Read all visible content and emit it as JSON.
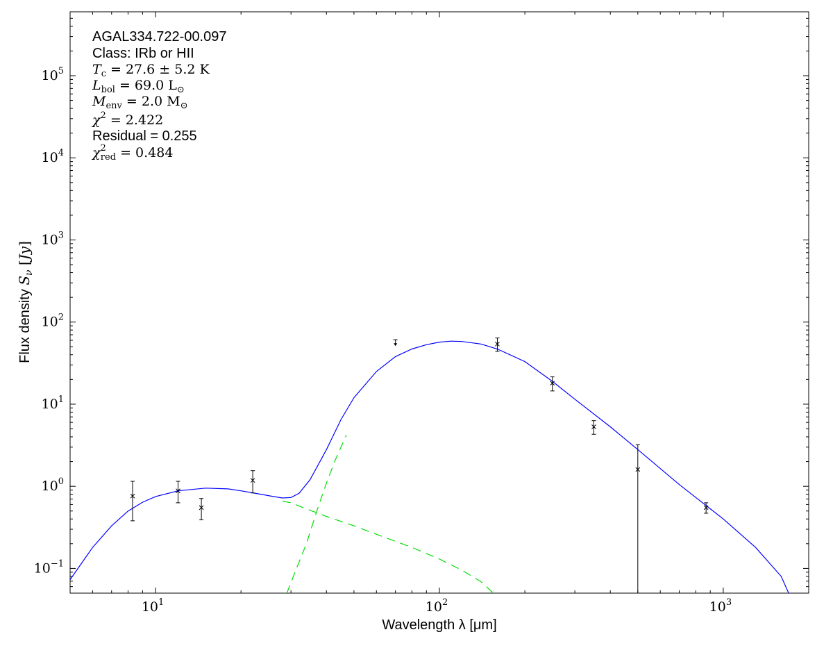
{
  "chart_data": {
    "type": "scatter",
    "xlabel": "Wavelength λ [μm]",
    "ylabel": "Flux density S_ν [Jy]",
    "xscale": "log",
    "yscale": "log",
    "xlim": [
      5,
      2000
    ],
    "ylim": [
      0.05,
      600000
    ],
    "x_ticks": [
      {
        "value": 10,
        "base": "10",
        "exp": "1"
      },
      {
        "value": 100,
        "base": "10",
        "exp": "2"
      },
      {
        "value": 1000,
        "base": "10",
        "exp": "3"
      }
    ],
    "y_ticks": [
      {
        "value": 0.1,
        "base": "10",
        "exp": "−1"
      },
      {
        "value": 1,
        "base": "10",
        "exp": "0"
      },
      {
        "value": 10,
        "base": "10",
        "exp": "1"
      },
      {
        "value": 100,
        "base": "10",
        "exp": "2"
      },
      {
        "value": 1000,
        "base": "10",
        "exp": "3"
      },
      {
        "value": 10000,
        "base": "10",
        "exp": "4"
      },
      {
        "value": 100000,
        "base": "10",
        "exp": "5"
      }
    ],
    "grid": false,
    "annotations": {
      "source": "AGAL334.722-00.097",
      "class_text": "Class: IRb or HII",
      "tc": {
        "sym": "T",
        "sub": "c",
        "val": " = 27.6 ± 5.2 K"
      },
      "lbol": {
        "sym": "L",
        "sub": "bol",
        "val": " = 69.0 L",
        "sub2": "⊙"
      },
      "menv": {
        "sym": "M",
        "sub": "env",
        "val": " = 2.0 M",
        "sub2": "⊙"
      },
      "chi2": {
        "sym": "χ",
        "sup": "2",
        "val": " = 2.422"
      },
      "residual": "Residual = 0.255",
      "chi2red": {
        "sym": "χ",
        "sup": "2",
        "sub": "red",
        "val": " = 0.484"
      }
    },
    "data_points": [
      {
        "x": 8.3,
        "y": 0.76,
        "ylo": 0.38,
        "yhi": 1.15
      },
      {
        "x": 12,
        "y": 0.88,
        "ylo": 0.63,
        "yhi": 1.15
      },
      {
        "x": 14.5,
        "y": 0.55,
        "ylo": 0.39,
        "yhi": 0.71
      },
      {
        "x": 22,
        "y": 1.18,
        "ylo": 0.83,
        "yhi": 1.55
      },
      {
        "x": 160,
        "y": 54,
        "ylo": 44,
        "yhi": 64
      },
      {
        "x": 250,
        "y": 18,
        "ylo": 14.5,
        "yhi": 21.5
      },
      {
        "x": 350,
        "y": 5.3,
        "ylo": 4.3,
        "yhi": 6.3
      },
      {
        "x": 500,
        "y": 1.6,
        "ylo": 0.0001,
        "yhi": 3.2
      },
      {
        "x": 870,
        "y": 0.55,
        "ylo": 0.47,
        "yhi": 0.63
      }
    ],
    "upper_limits": [
      {
        "x": 70,
        "y": 61,
        "arrow_to": 52
      }
    ],
    "model_curves": {
      "total_color": "#0000ff",
      "component_color": "#00dd00",
      "total": [
        [
          5,
          0.073
        ],
        [
          6,
          0.18
        ],
        [
          7,
          0.33
        ],
        [
          8,
          0.5
        ],
        [
          9,
          0.64
        ],
        [
          10,
          0.75
        ],
        [
          12,
          0.88
        ],
        [
          15,
          0.95
        ],
        [
          18,
          0.93
        ],
        [
          20,
          0.88
        ],
        [
          23,
          0.81
        ],
        [
          26,
          0.75
        ],
        [
          28,
          0.72
        ],
        [
          30,
          0.73
        ],
        [
          32,
          0.82
        ],
        [
          35,
          1.2
        ],
        [
          40,
          2.8
        ],
        [
          45,
          6.5
        ],
        [
          50,
          12
        ],
        [
          60,
          25
        ],
        [
          70,
          38
        ],
        [
          80,
          47
        ],
        [
          90,
          53
        ],
        [
          100,
          57
        ],
        [
          110,
          58.5
        ],
        [
          120,
          58
        ],
        [
          140,
          54
        ],
        [
          160,
          47
        ],
        [
          200,
          33
        ],
        [
          250,
          19
        ],
        [
          300,
          11.5
        ],
        [
          400,
          5.3
        ],
        [
          500,
          2.8
        ],
        [
          700,
          1.05
        ],
        [
          1000,
          0.4
        ],
        [
          1300,
          0.18
        ],
        [
          1600,
          0.08
        ],
        [
          1700,
          0.05
        ]
      ],
      "hot_component": [
        [
          28,
          0.66
        ],
        [
          30,
          0.63
        ],
        [
          35,
          0.51
        ],
        [
          40,
          0.43
        ],
        [
          50,
          0.33
        ],
        [
          60,
          0.26
        ],
        [
          80,
          0.18
        ],
        [
          100,
          0.13
        ],
        [
          120,
          0.095
        ],
        [
          140,
          0.069
        ],
        [
          155,
          0.05
        ]
      ],
      "cold_component": [
        [
          29,
          0.05
        ],
        [
          31,
          0.09
        ],
        [
          34,
          0.2
        ],
        [
          37,
          0.5
        ],
        [
          40,
          1.1
        ],
        [
          43,
          2.1
        ],
        [
          47,
          4.2
        ]
      ]
    }
  }
}
